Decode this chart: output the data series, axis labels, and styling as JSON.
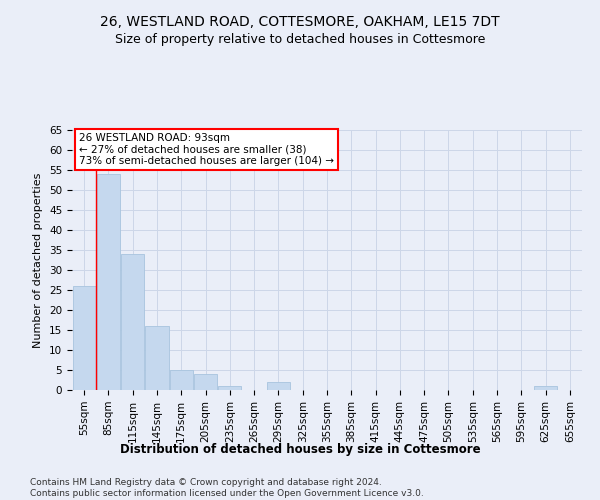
{
  "title": "26, WESTLAND ROAD, COTTESMORE, OAKHAM, LE15 7DT",
  "subtitle": "Size of property relative to detached houses in Cottesmore",
  "xlabel": "Distribution of detached houses by size in Cottesmore",
  "ylabel": "Number of detached properties",
  "bin_labels": [
    "55sqm",
    "85sqm",
    "115sqm",
    "145sqm",
    "175sqm",
    "205sqm",
    "235sqm",
    "265sqm",
    "295sqm",
    "325sqm",
    "355sqm",
    "385sqm",
    "415sqm",
    "445sqm",
    "475sqm",
    "505sqm",
    "535sqm",
    "565sqm",
    "595sqm",
    "625sqm",
    "655sqm"
  ],
  "bar_values": [
    26,
    54,
    34,
    16,
    5,
    4,
    1,
    0,
    2,
    0,
    0,
    0,
    0,
    0,
    0,
    0,
    0,
    0,
    0,
    1,
    0
  ],
  "bar_color": "#c5d8ee",
  "bar_edge_color": "#a8c4de",
  "grid_color": "#cdd6e8",
  "background_color": "#eaeef8",
  "red_line_x": 0.5,
  "annotation_text": "26 WESTLAND ROAD: 93sqm\n← 27% of detached houses are smaller (38)\n73% of semi-detached houses are larger (104) →",
  "annotation_box_color": "white",
  "annotation_box_edge_color": "red",
  "ylim": [
    0,
    65
  ],
  "yticks": [
    0,
    5,
    10,
    15,
    20,
    25,
    30,
    35,
    40,
    45,
    50,
    55,
    60,
    65
  ],
  "footer_text": "Contains HM Land Registry data © Crown copyright and database right 2024.\nContains public sector information licensed under the Open Government Licence v3.0.",
  "title_fontsize": 10,
  "subtitle_fontsize": 9,
  "xlabel_fontsize": 8.5,
  "ylabel_fontsize": 8,
  "tick_fontsize": 7.5,
  "annotation_fontsize": 7.5,
  "footer_fontsize": 6.5
}
